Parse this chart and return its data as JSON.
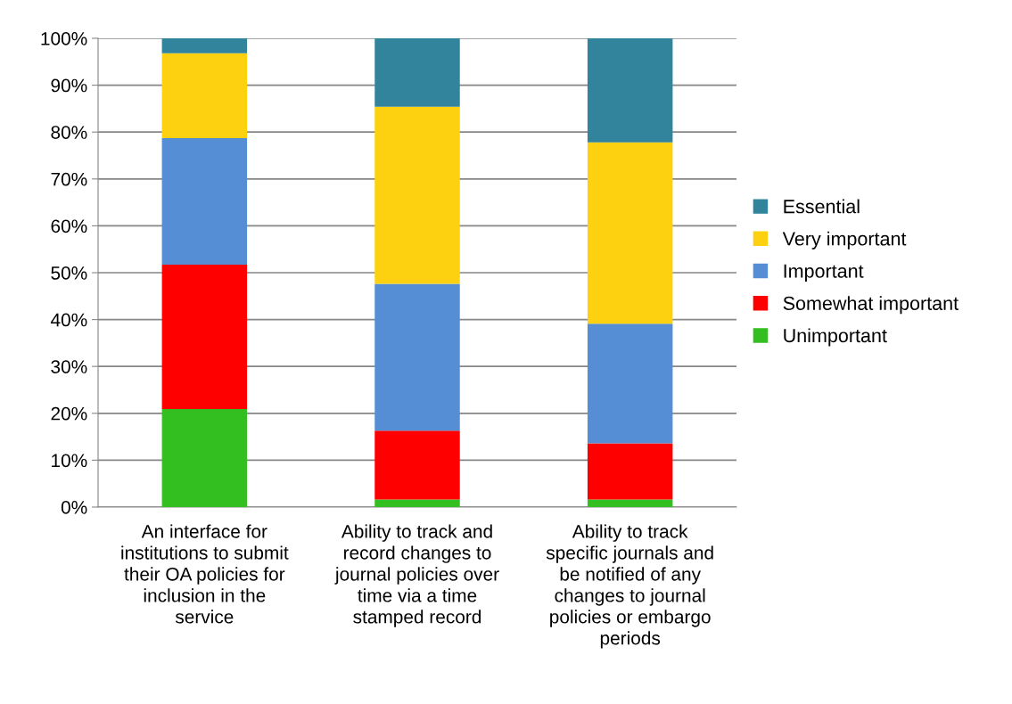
{
  "chart_data": {
    "type": "bar",
    "stacked": true,
    "categories": [
      "An interface for\ninstitutions to submit\ntheir OA policies for\ninclusion in the\nservice",
      "Ability to track and\nrecord changes to\njournal policies over\ntime via a time\nstamped record",
      "Ability to track\nspecific journals and\nbe notified of any\nchanges to journal\npolicies or embargo\nperiods"
    ],
    "series": [
      {
        "name": "Unimportant",
        "color": "#33bf1f",
        "values": [
          20.9,
          1.6,
          1.6
        ]
      },
      {
        "name": "Somewhat important",
        "color": "#ff0000",
        "values": [
          30.8,
          14.7,
          12.0
        ]
      },
      {
        "name": "Important",
        "color": "#558ed5",
        "values": [
          27.0,
          31.3,
          25.5
        ]
      },
      {
        "name": "Very important",
        "color": "#fdd010",
        "values": [
          18.1,
          37.8,
          38.7
        ]
      },
      {
        "name": "Essential",
        "color": "#31849b",
        "values": [
          3.2,
          14.6,
          22.2
        ]
      }
    ],
    "ylim": [
      0,
      100
    ],
    "yticks": [
      {
        "value": 0,
        "label": "0%"
      },
      {
        "value": 10,
        "label": "10%"
      },
      {
        "value": 20,
        "label": "20%"
      },
      {
        "value": 30,
        "label": "30%"
      },
      {
        "value": 40,
        "label": "40%"
      },
      {
        "value": 50,
        "label": "50%"
      },
      {
        "value": 60,
        "label": "60%"
      },
      {
        "value": 70,
        "label": "70%"
      },
      {
        "value": 80,
        "label": "80%"
      },
      {
        "value": 90,
        "label": "90%"
      },
      {
        "value": 100,
        "label": "100%"
      }
    ],
    "grid": "y",
    "legend": "right"
  }
}
